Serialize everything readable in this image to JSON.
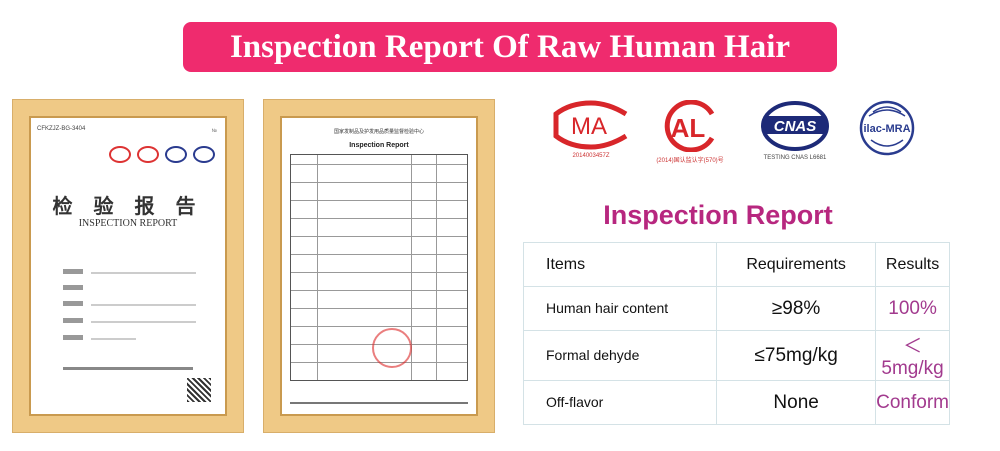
{
  "banner": {
    "title": "Inspection Report Of Raw Human Hair",
    "color": "#ef2b6e"
  },
  "certificate_1": {
    "doc_no": "CFKZJZ-BG-3404",
    "title_cn": "检 验 报 告",
    "title_en": "INSPECTION REPORT"
  },
  "certificate_2": {
    "header": "国家发制品及护发用品质量监督检验中心",
    "title": "Inspection Report"
  },
  "logos": [
    {
      "name": "CMA",
      "caption": "2014003457Z"
    },
    {
      "name": "CAL",
      "caption": "(2014)国认监认字(570)号"
    },
    {
      "name": "CNAS",
      "caption": "TESTING CNAS L6681"
    },
    {
      "name": "ilac-MRA",
      "caption": ""
    }
  ],
  "report": {
    "heading": "Inspection  Report",
    "accent_color": "#b7277f",
    "columns": [
      "Items",
      "Requirements",
      "Results"
    ],
    "rows": [
      {
        "item": "Human hair content",
        "requirement": "≥98%",
        "result": "100%"
      },
      {
        "item": "Formal dehyde",
        "requirement": "≤75mg/kg",
        "result": "＜5mg/kg"
      },
      {
        "item": "Off-flavor",
        "requirement": "None",
        "result": "Conform"
      }
    ]
  }
}
